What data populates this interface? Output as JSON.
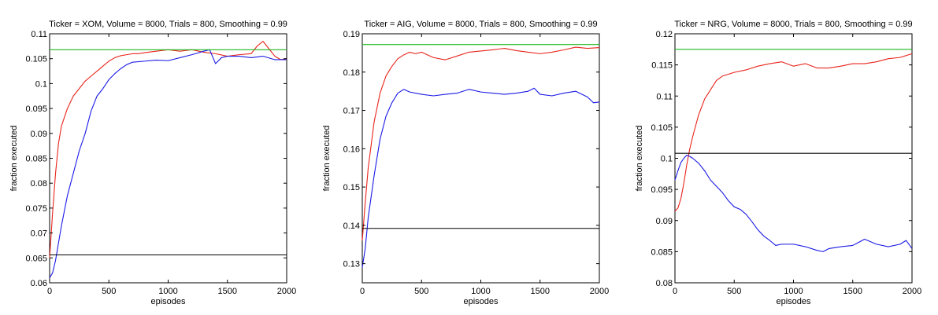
{
  "chart_data": [
    {
      "type": "line",
      "title": "Ticker = XOM, Volume = 8000, Trials = 800, Smoothing = 0.99",
      "xlabel": "episodes",
      "ylabel": "fraction executed",
      "xlim": [
        0,
        2000
      ],
      "ylim": [
        0.06,
        0.11
      ],
      "xticks": [
        0,
        500,
        1000,
        1500,
        2000
      ],
      "xtick_labels": [
        "0",
        "500",
        "1000",
        "1500",
        "2000"
      ],
      "yticks": [
        0.06,
        0.065,
        0.07,
        0.075,
        0.08,
        0.085,
        0.09,
        0.095,
        0.1,
        0.105,
        0.11
      ],
      "ytick_labels": [
        "0.06",
        "0.065",
        "0.07",
        "0.075",
        "0.08",
        "0.085",
        "0.09",
        "0.095",
        "0.1",
        "0.105",
        "0.11"
      ],
      "series": [
        {
          "name": "red",
          "color": "#e8241c",
          "x": [
            0,
            25,
            50,
            75,
            100,
            150,
            200,
            250,
            300,
            350,
            400,
            450,
            500,
            550,
            600,
            650,
            700,
            750,
            800,
            900,
            1000,
            1100,
            1200,
            1300,
            1400,
            1500,
            1600,
            1700,
            1750,
            1800,
            1850,
            1900,
            1950,
            2000
          ],
          "y": [
            0.065,
            0.074,
            0.082,
            0.088,
            0.0915,
            0.095,
            0.0975,
            0.099,
            0.1005,
            0.1015,
            0.1025,
            0.1035,
            0.1045,
            0.1052,
            0.1056,
            0.1058,
            0.106,
            0.106,
            0.1062,
            0.1065,
            0.1068,
            0.1065,
            0.1068,
            0.1063,
            0.106,
            0.1055,
            0.1058,
            0.106,
            0.1075,
            0.1085,
            0.107,
            0.1055,
            0.1048,
            0.105
          ]
        },
        {
          "name": "blue",
          "color": "#1a1ae6",
          "x": [
            0,
            25,
            50,
            100,
            150,
            200,
            250,
            300,
            350,
            400,
            450,
            500,
            550,
            600,
            650,
            700,
            800,
            900,
            1000,
            1100,
            1200,
            1300,
            1350,
            1400,
            1450,
            1500,
            1600,
            1700,
            1800,
            1900,
            2000
          ],
          "y": [
            0.061,
            0.062,
            0.0645,
            0.0715,
            0.0775,
            0.082,
            0.0865,
            0.09,
            0.0945,
            0.0975,
            0.099,
            0.1008,
            0.102,
            0.103,
            0.1038,
            0.1043,
            0.1045,
            0.1047,
            0.1046,
            0.1052,
            0.1058,
            0.1065,
            0.1068,
            0.104,
            0.1052,
            0.1055,
            0.1055,
            0.1052,
            0.1055,
            0.1048,
            0.1048
          ]
        },
        {
          "name": "green",
          "color": "#1fb81f",
          "x": [
            0,
            2000
          ],
          "y": [
            0.1068,
            0.1068
          ]
        },
        {
          "name": "black",
          "color": "#000000",
          "x": [
            0,
            2000
          ],
          "y": [
            0.0656,
            0.0656
          ]
        }
      ]
    },
    {
      "type": "line",
      "title": "Ticker = AIG, Volume = 8000, Trials = 800, Smoothing = 0.99",
      "xlabel": "episodes",
      "ylabel": "fraction executed",
      "xlim": [
        0,
        2000
      ],
      "ylim": [
        0.125,
        0.19
      ],
      "xticks": [
        0,
        500,
        1000,
        1500,
        2000
      ],
      "xtick_labels": [
        "0",
        "500",
        "1000",
        "1500",
        "2000"
      ],
      "yticks": [
        0.13,
        0.14,
        0.15,
        0.16,
        0.17,
        0.18,
        0.19
      ],
      "ytick_labels": [
        "0.13",
        "0.14",
        "0.15",
        "0.16",
        "0.17",
        "0.18",
        "0.19"
      ],
      "series": [
        {
          "name": "red",
          "color": "#e8241c",
          "x": [
            0,
            25,
            50,
            100,
            150,
            200,
            250,
            300,
            350,
            400,
            450,
            500,
            550,
            600,
            700,
            800,
            900,
            1000,
            1100,
            1200,
            1300,
            1400,
            1500,
            1600,
            1700,
            1800,
            1900,
            2000
          ],
          "y": [
            0.136,
            0.146,
            0.155,
            0.167,
            0.1745,
            0.179,
            0.1815,
            0.1835,
            0.1845,
            0.1852,
            0.1848,
            0.1852,
            0.1845,
            0.1838,
            0.1832,
            0.1842,
            0.1852,
            0.1855,
            0.1858,
            0.1862,
            0.1856,
            0.1852,
            0.1848,
            0.1852,
            0.1858,
            0.1865,
            0.1862,
            0.1864
          ]
        },
        {
          "name": "blue",
          "color": "#1a1ae6",
          "x": [
            0,
            25,
            50,
            100,
            150,
            200,
            250,
            300,
            350,
            400,
            500,
            600,
            700,
            800,
            900,
            1000,
            1100,
            1200,
            1300,
            1400,
            1450,
            1500,
            1600,
            1700,
            1800,
            1900,
            1950,
            2000
          ],
          "y": [
            0.129,
            0.134,
            0.142,
            0.153,
            0.1625,
            0.1685,
            0.172,
            0.1745,
            0.1755,
            0.1748,
            0.1742,
            0.1738,
            0.1742,
            0.1745,
            0.1755,
            0.1748,
            0.1745,
            0.1742,
            0.1745,
            0.175,
            0.1758,
            0.1742,
            0.1738,
            0.1745,
            0.175,
            0.1735,
            0.172,
            0.1722
          ]
        },
        {
          "name": "green",
          "color": "#1fb81f",
          "x": [
            0,
            2000
          ],
          "y": [
            0.1872,
            0.1872
          ]
        },
        {
          "name": "black",
          "color": "#000000",
          "x": [
            0,
            2000
          ],
          "y": [
            0.1392,
            0.1392
          ]
        }
      ]
    },
    {
      "type": "line",
      "title": "Ticker = NRG, Volume = 8000, Trials = 800, Smoothing = 0.99",
      "xlabel": "episodes",
      "ylabel": "fraction executed",
      "xlim": [
        0,
        2000
      ],
      "ylim": [
        0.08,
        0.12
      ],
      "xticks": [
        0,
        500,
        1000,
        1500,
        2000
      ],
      "xtick_labels": [
        "0",
        "500",
        "1000",
        "1500",
        "2000"
      ],
      "yticks": [
        0.08,
        0.085,
        0.09,
        0.095,
        0.1,
        0.105,
        0.11,
        0.115,
        0.12
      ],
      "ytick_labels": [
        "0.08",
        "0.085",
        "0.09",
        "0.095",
        "0.1",
        "0.105",
        "0.11",
        "0.115",
        "0.12"
      ],
      "series": [
        {
          "name": "red",
          "color": "#e8241c",
          "x": [
            0,
            25,
            50,
            75,
            100,
            125,
            150,
            200,
            250,
            300,
            350,
            400,
            450,
            500,
            600,
            700,
            800,
            900,
            1000,
            1100,
            1200,
            1300,
            1400,
            1500,
            1600,
            1700,
            1800,
            1900,
            2000
          ],
          "y": [
            0.0915,
            0.092,
            0.0935,
            0.096,
            0.099,
            0.1015,
            0.1035,
            0.107,
            0.1095,
            0.111,
            0.1125,
            0.1132,
            0.1135,
            0.1138,
            0.1142,
            0.1148,
            0.1152,
            0.1155,
            0.1148,
            0.1152,
            0.1145,
            0.1145,
            0.1148,
            0.1152,
            0.1152,
            0.1155,
            0.116,
            0.1162,
            0.1168
          ]
        },
        {
          "name": "blue",
          "color": "#1a1ae6",
          "x": [
            0,
            25,
            50,
            75,
            100,
            125,
            150,
            200,
            250,
            300,
            350,
            400,
            450,
            500,
            550,
            600,
            650,
            700,
            750,
            800,
            850,
            900,
            1000,
            1100,
            1200,
            1250,
            1300,
            1400,
            1500,
            1550,
            1600,
            1700,
            1800,
            1900,
            1950,
            2000
          ],
          "y": [
            0.0965,
            0.098,
            0.0993,
            0.1,
            0.1005,
            0.1003,
            0.1,
            0.0992,
            0.098,
            0.0965,
            0.0955,
            0.0945,
            0.0932,
            0.0922,
            0.0918,
            0.091,
            0.0898,
            0.0885,
            0.0875,
            0.0868,
            0.086,
            0.0862,
            0.0862,
            0.0858,
            0.0852,
            0.085,
            0.0855,
            0.0858,
            0.086,
            0.0865,
            0.087,
            0.0862,
            0.0858,
            0.0862,
            0.0868,
            0.0855
          ]
        },
        {
          "name": "green",
          "color": "#1fb81f",
          "x": [
            0,
            2000
          ],
          "y": [
            0.1175,
            0.1175
          ]
        },
        {
          "name": "black",
          "color": "#000000",
          "x": [
            0,
            2000
          ],
          "y": [
            0.1008,
            0.1008
          ]
        }
      ]
    }
  ]
}
